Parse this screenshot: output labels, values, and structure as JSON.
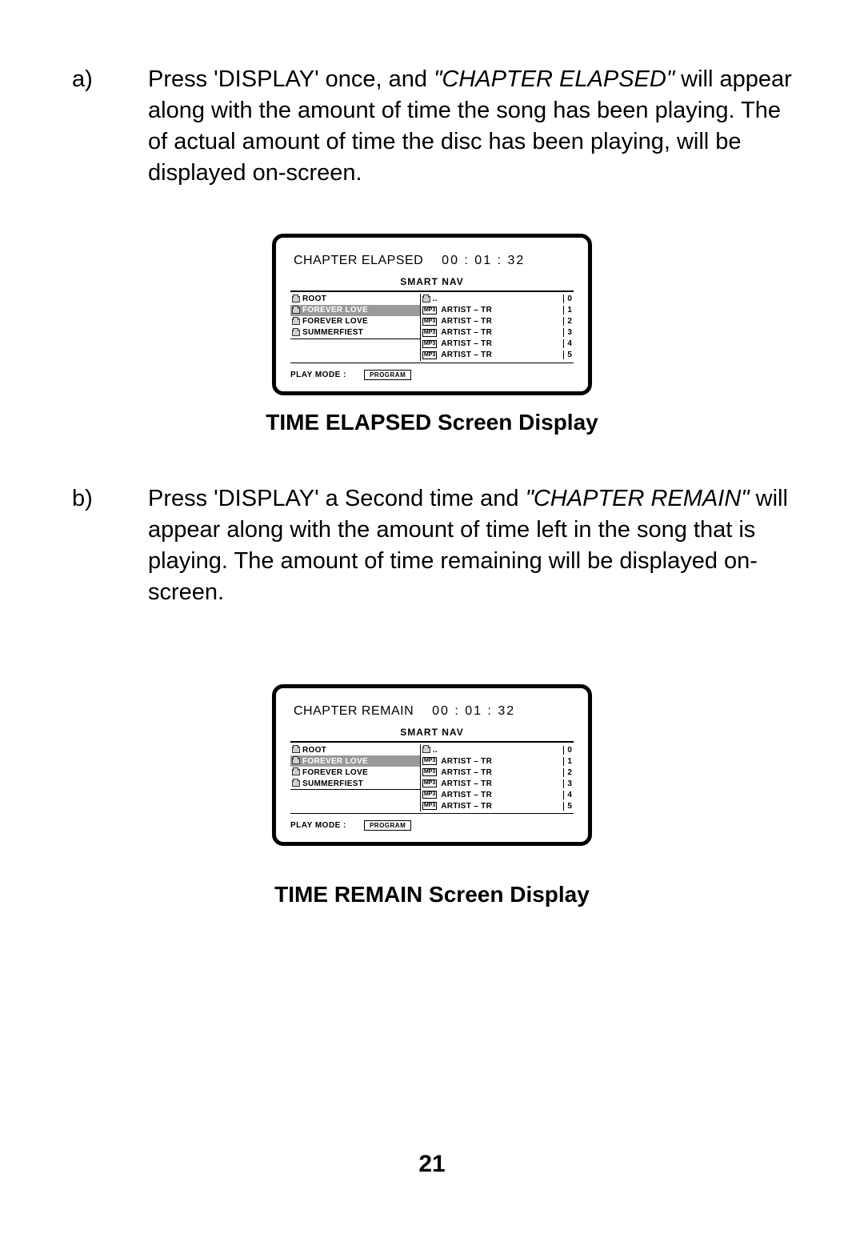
{
  "section_a": {
    "label": "a)",
    "text_pre": "Press 'DISPLAY' once, and ",
    "text_italic": "\"CHAPTER ELAPSED\" ",
    "text_post": "will appear along with the amount of time the song has been playing. The of actual amount of time the disc has been playing, will be displayed on-screen."
  },
  "section_b": {
    "label": "b)",
    "text_pre": "Press 'DISPLAY' a Second time and ",
    "text_italic": "\"CHAPTER REMAIN\" ",
    "text_post": "will appear along with the amount of time left in the song that is playing. The amount of time remaining will be displayed on-screen."
  },
  "screen1": {
    "chapter_label": "CHAPTER ELAPSED",
    "chapter_time": "00 : 01 : 32",
    "smart_nav": "SMART NAV",
    "left_items": [
      "ROOT",
      "FOREVER LOVE",
      "FOREVER LOVE",
      "SUMMERFIEST"
    ],
    "selected_left_index": 1,
    "right_first": "..",
    "right_items": [
      "ARTIST  –  TR",
      "ARTIST  –  TR",
      "ARTIST  –  TR",
      "ARTIST  –  TR",
      "ARTIST  –  TR"
    ],
    "right_nums": [
      "0",
      "1",
      "2",
      "3",
      "4",
      "5"
    ],
    "mp3_badge": "MP3",
    "play_mode_label": "PLAY MODE :",
    "play_mode_value": "PROGRAM"
  },
  "screen2": {
    "chapter_label": "CHAPTER REMAIN",
    "chapter_time": "00 : 01 : 32",
    "smart_nav": "SMART NAV",
    "left_items": [
      "ROOT",
      "FOREVER LOVE",
      "FOREVER LOVE",
      "SUMMERFIEST"
    ],
    "selected_left_index": 1,
    "right_first": "..",
    "right_items": [
      "ARTIST  –  TR",
      "ARTIST  –  TR",
      "ARTIST  –  TR",
      "ARTIST  –  TR",
      "ARTIST  –  TR"
    ],
    "right_nums": [
      "0",
      "1",
      "2",
      "3",
      "4",
      "5"
    ],
    "mp3_badge": "MP3",
    "play_mode_label": "PLAY MODE :",
    "play_mode_value": "PROGRAM"
  },
  "caption1": "TIME ELAPSED Screen Display",
  "caption2": "TIME REMAIN Screen Display",
  "page_number": "21"
}
